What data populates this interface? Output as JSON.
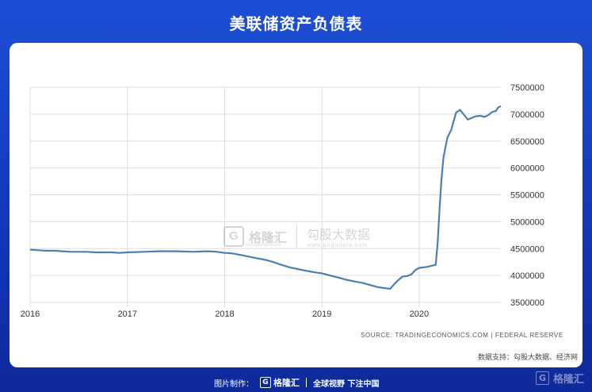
{
  "header": {
    "title": "美联储资产负债表"
  },
  "chart_data": {
    "type": "line",
    "title": "美联储资产负债表",
    "xlabel": "",
    "ylabel": "",
    "x_ticks": [
      "2016",
      "2017",
      "2018",
      "2019",
      "2020"
    ],
    "y_ticks": [
      "3500000",
      "4000000",
      "4500000",
      "5000000",
      "5500000",
      "6000000",
      "6500000",
      "7000000",
      "7500000"
    ],
    "xlim": [
      2016.0,
      2020.84
    ],
    "ylim": [
      3500000,
      7500000
    ],
    "grid": true,
    "series": [
      {
        "x": [
          2016.0,
          2016.08,
          2016.17,
          2016.25,
          2016.33,
          2016.42,
          2016.5,
          2016.58,
          2016.67,
          2016.75,
          2016.83,
          2016.92,
          2017.0,
          2017.17,
          2017.33,
          2017.5,
          2017.67,
          2017.83,
          2017.92,
          2018.0,
          2018.08,
          2018.17,
          2018.25,
          2018.33,
          2018.42,
          2018.5,
          2018.58,
          2018.67,
          2018.75,
          2018.83,
          2018.92,
          2019.0,
          2019.08,
          2019.17,
          2019.25,
          2019.33,
          2019.42,
          2019.5,
          2019.58,
          2019.67,
          2019.7,
          2019.75,
          2019.79,
          2019.83,
          2019.88,
          2019.92,
          2019.96,
          2020.0,
          2020.04,
          2020.08,
          2020.13,
          2020.17,
          2020.19,
          2020.21,
          2020.23,
          2020.25,
          2020.29,
          2020.33,
          2020.38,
          2020.42,
          2020.46,
          2020.5,
          2020.54,
          2020.58,
          2020.63,
          2020.67,
          2020.71,
          2020.75,
          2020.79,
          2020.81,
          2020.84
        ],
        "y": [
          4480000,
          4470000,
          4460000,
          4460000,
          4450000,
          4440000,
          4440000,
          4440000,
          4430000,
          4430000,
          4430000,
          4420000,
          4430000,
          4440000,
          4450000,
          4450000,
          4440000,
          4450000,
          4440000,
          4420000,
          4410000,
          4380000,
          4350000,
          4320000,
          4290000,
          4250000,
          4200000,
          4150000,
          4120000,
          4090000,
          4060000,
          4040000,
          4000000,
          3960000,
          3920000,
          3890000,
          3860000,
          3820000,
          3780000,
          3760000,
          3750000,
          3850000,
          3920000,
          3980000,
          3990000,
          4020000,
          4100000,
          4140000,
          4150000,
          4160000,
          4180000,
          4200000,
          4600000,
          5250000,
          5800000,
          6200000,
          6560000,
          6710000,
          7030000,
          7080000,
          6990000,
          6900000,
          6930000,
          6960000,
          6970000,
          6950000,
          6980000,
          7040000,
          7060000,
          7120000,
          7150000
        ]
      }
    ],
    "line_color": "#4a7fb5",
    "source": "SOURCE: TRADINGECONOMICS.COM  |  FEDERAL  RESERVE"
  },
  "credit": "数据支持：勾股大数据、经济网",
  "watermark": {
    "logo_letter": "G",
    "brand": "格隆汇",
    "brand_sub": "www.gelonghui.com",
    "brand2": "勾股大数据",
    "brand2_sub": "www.gogudata.com"
  },
  "footer": {
    "made_by": "图片制作：",
    "logo_letter": "G",
    "brand": "格隆汇",
    "slogan": "全球视野 下注中国"
  },
  "corner": {
    "logo_letter": "G",
    "brand": "格隆汇"
  },
  "colors": {
    "background": "#1440c8",
    "card": "#ffffff",
    "line": "#4a7fb5",
    "grid": "#dddddd"
  }
}
